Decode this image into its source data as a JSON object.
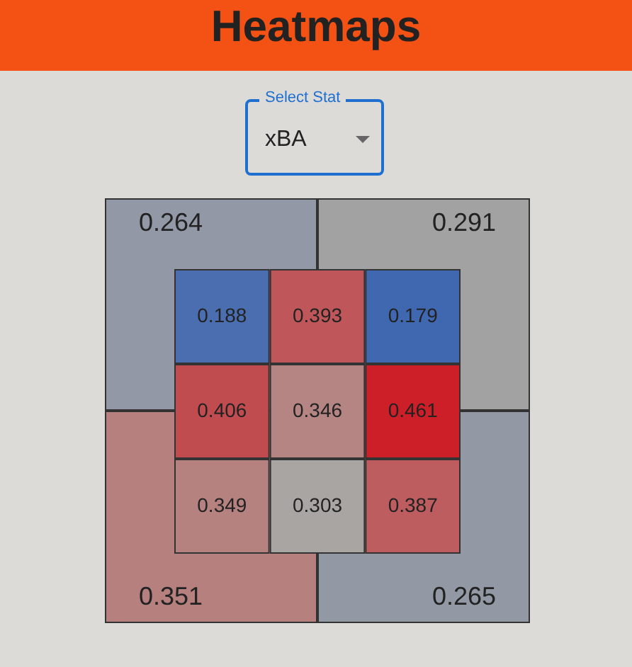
{
  "chart_data": [
    {
      "type": "heatmap",
      "title": "Heatmaps",
      "annotations": [
        "Select Stat",
        "xBA"
      ],
      "categories": [
        null,
        null
      ],
      "y_categories": [
        null,
        null
      ],
      "cells": [
        [
          0.264,
          0.291
        ],
        [
          0.351,
          0.265
        ]
      ],
      "data_labels": true
    },
    {
      "type": "heatmap",
      "categories": [
        null,
        null,
        null
      ],
      "y_categories": [
        null,
        null,
        null
      ],
      "cells": [
        [
          0.188,
          0.393,
          0.179
        ],
        [
          0.406,
          0.346,
          0.461
        ],
        [
          0.349,
          0.303,
          0.387
        ]
      ],
      "data_labels": true
    }
  ]
}
